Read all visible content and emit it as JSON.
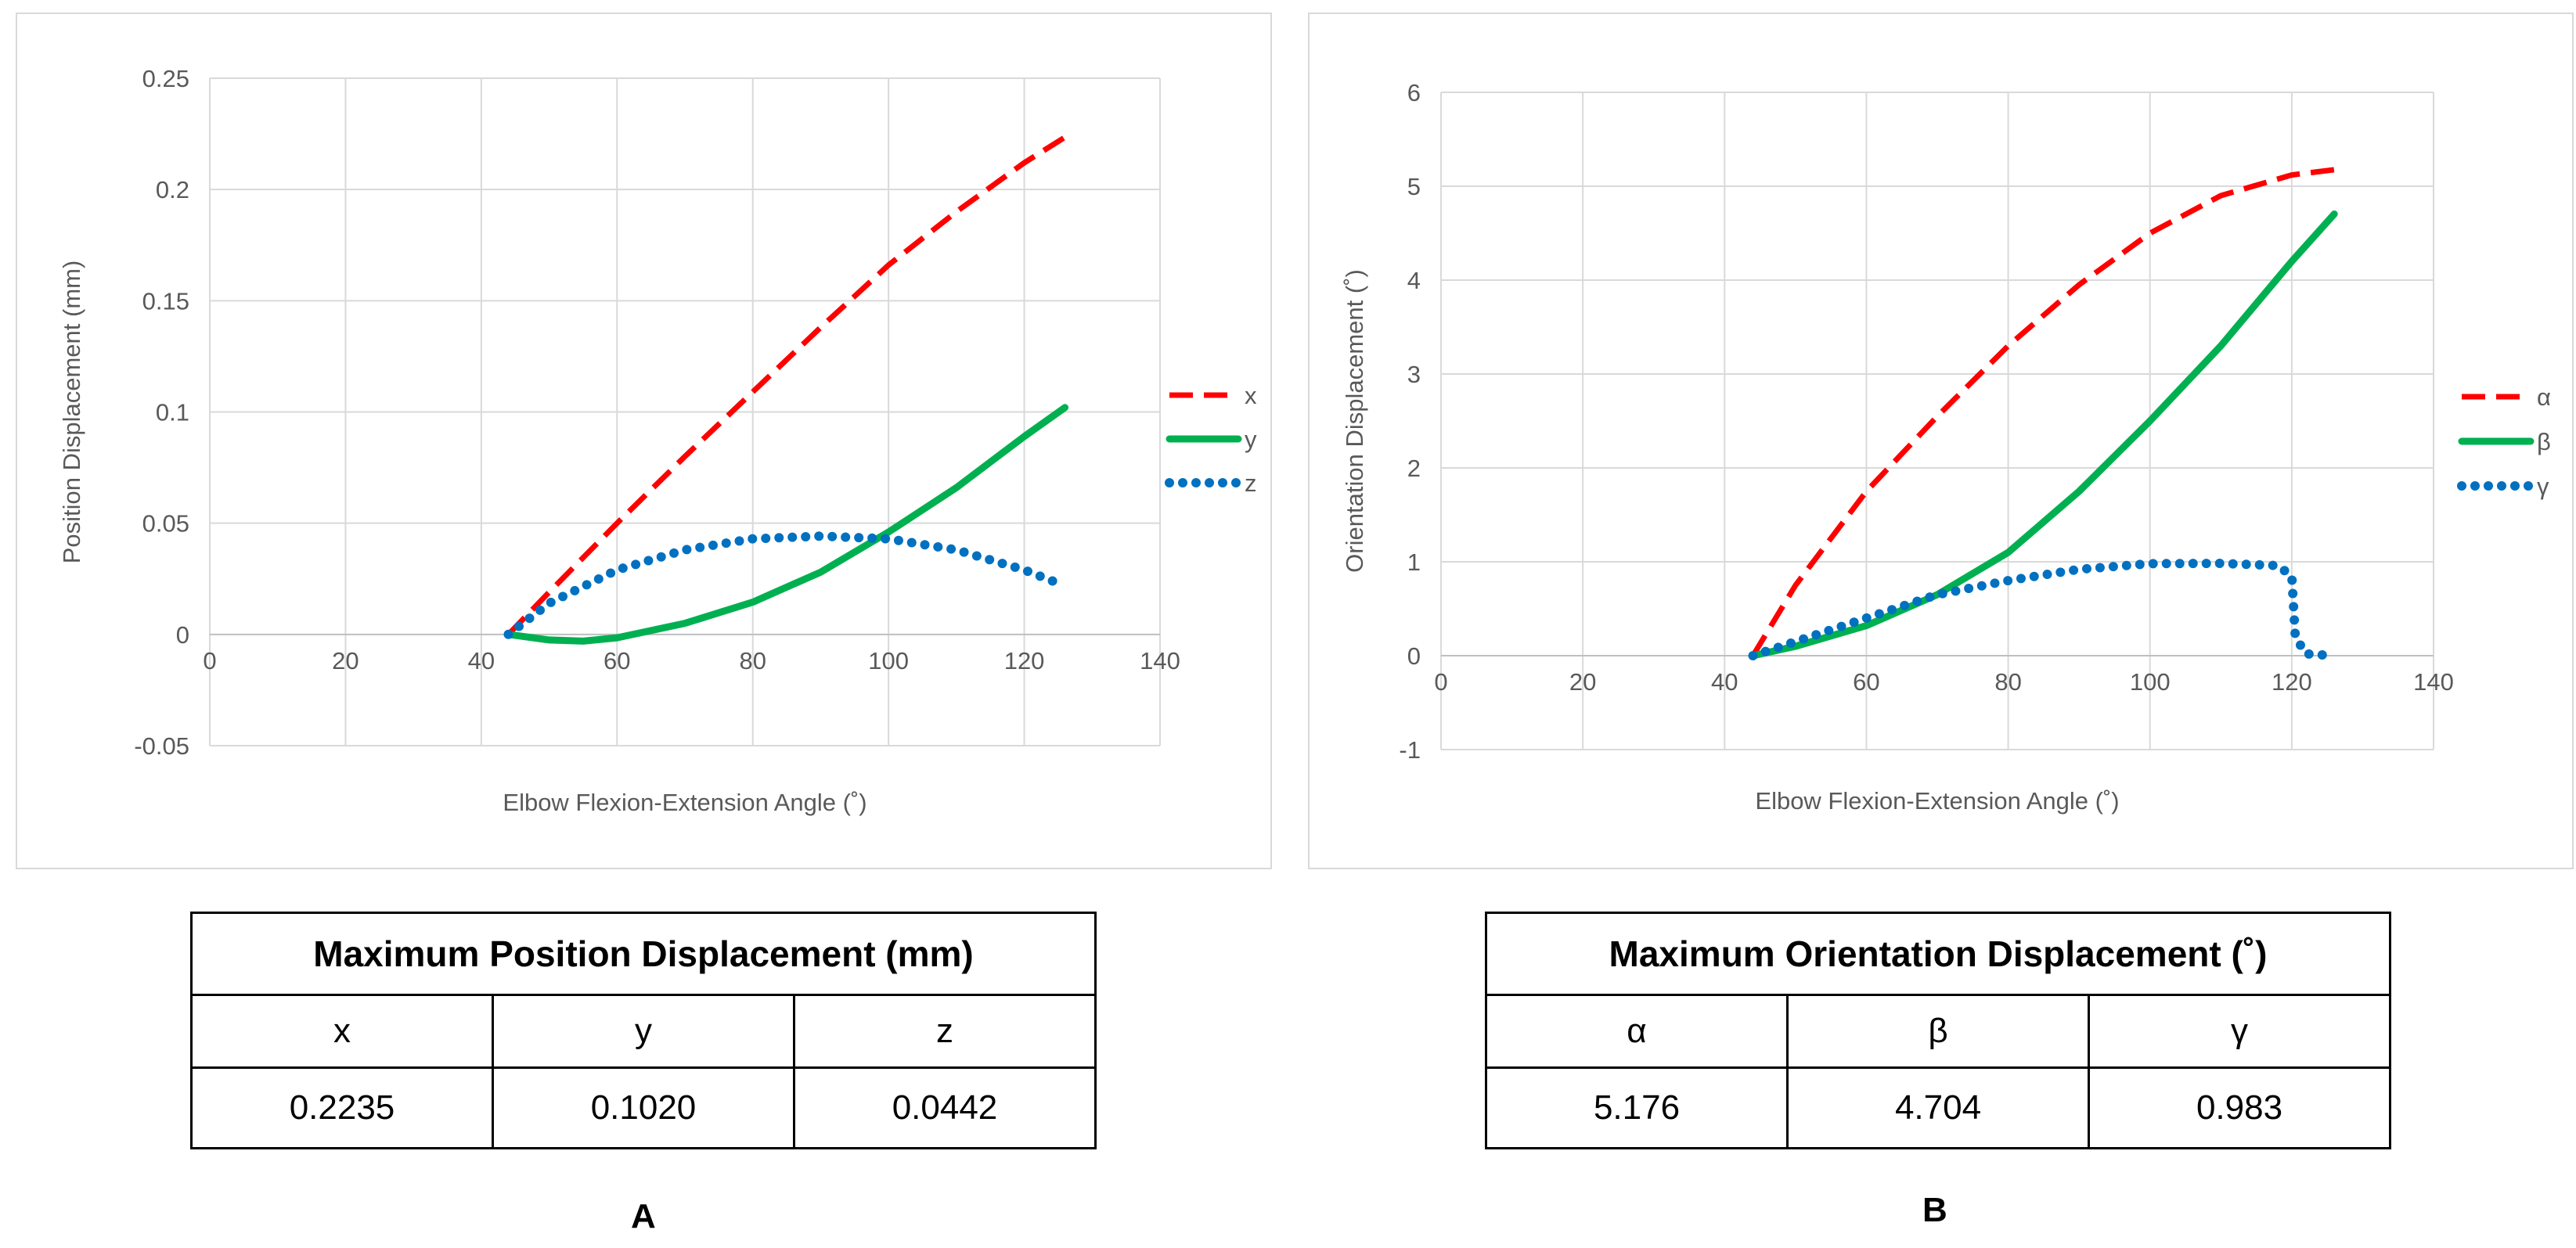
{
  "chart_data": [
    {
      "type": "line",
      "panel": "A",
      "title": "",
      "xlabel": "Elbow Flexion-Extension Angle (˚)",
      "ylabel": "Position Displacement (mm)",
      "xlim": [
        0,
        140
      ],
      "ylim": [
        -0.05,
        0.25
      ],
      "x_ticks": [
        "0",
        "20",
        "40",
        "60",
        "80",
        "100",
        "120",
        "140"
      ],
      "y_ticks": [
        "-0.05",
        "0",
        "0.05",
        "0.1",
        "0.15",
        "0.2",
        "0.25"
      ],
      "grid": true,
      "legend_position": "right",
      "series": [
        {
          "name": "x",
          "color": "#ff0000",
          "style": "dashed",
          "x": [
            44,
            50,
            60,
            70,
            80,
            90,
            100,
            110,
            120,
            126
          ],
          "y": [
            0,
            0.019,
            0.05,
            0.08,
            0.109,
            0.138,
            0.166,
            0.19,
            0.212,
            0.2235
          ]
        },
        {
          "name": "y",
          "color": "#00b050",
          "style": "solid",
          "x": [
            44,
            50,
            55,
            60,
            70,
            80,
            90,
            100,
            110,
            120,
            126
          ],
          "y": [
            0,
            -0.0025,
            -0.003,
            -0.0015,
            0.005,
            0.0145,
            0.028,
            0.046,
            0.066,
            0.089,
            0.102
          ]
        },
        {
          "name": "z",
          "color": "#0070c0",
          "style": "dotted",
          "x": [
            44,
            50,
            60,
            70,
            80,
            90,
            100,
            110,
            120,
            125
          ],
          "y": [
            0,
            0.014,
            0.029,
            0.038,
            0.043,
            0.0442,
            0.043,
            0.038,
            0.029,
            0.023
          ]
        }
      ]
    },
    {
      "type": "line",
      "panel": "B",
      "title": "",
      "xlabel": "Elbow Flexion-Extension Angle (˚)",
      "ylabel": "Orientation Displacement (˚)",
      "xlim": [
        0,
        140
      ],
      "ylim": [
        -1,
        6
      ],
      "x_ticks": [
        "0",
        "20",
        "40",
        "60",
        "80",
        "100",
        "120",
        "140"
      ],
      "y_ticks": [
        "-1",
        "0",
        "1",
        "2",
        "3",
        "4",
        "5",
        "6"
      ],
      "grid": true,
      "legend_position": "right",
      "series": [
        {
          "name": "α",
          "color": "#ff0000",
          "style": "dashed",
          "x": [
            44,
            50,
            60,
            70,
            80,
            90,
            100,
            110,
            120,
            126
          ],
          "y": [
            0,
            0.75,
            1.75,
            2.55,
            3.3,
            3.95,
            4.5,
            4.9,
            5.12,
            5.176
          ]
        },
        {
          "name": "β",
          "color": "#00b050",
          "style": "solid",
          "x": [
            44,
            50,
            60,
            70,
            80,
            90,
            100,
            110,
            120,
            126
          ],
          "y": [
            0,
            0.1,
            0.32,
            0.65,
            1.1,
            1.75,
            2.5,
            3.3,
            4.2,
            4.704
          ]
        },
        {
          "name": "γ",
          "color": "#0070c0",
          "style": "dotted",
          "x": [
            44,
            50,
            60,
            70,
            80,
            90,
            100,
            110,
            118,
            120,
            120.5,
            122,
            126
          ],
          "y": [
            0,
            0.15,
            0.4,
            0.65,
            0.8,
            0.92,
            0.98,
            0.983,
            0.96,
            0.85,
            0.2,
            0.02,
            0
          ]
        }
      ]
    }
  ],
  "tables": [
    {
      "title": "Maximum Position Displacement (mm)",
      "headers": [
        "x",
        "y",
        "z"
      ],
      "values": [
        "0.2235",
        "0.1020",
        "0.0442"
      ]
    },
    {
      "title": "Maximum Orientation Displacement (˚)",
      "headers": [
        "α",
        "β",
        "γ"
      ],
      "values": [
        "5.176",
        "4.704",
        "0.983"
      ]
    }
  ],
  "panel_labels": [
    "A",
    "B"
  ]
}
